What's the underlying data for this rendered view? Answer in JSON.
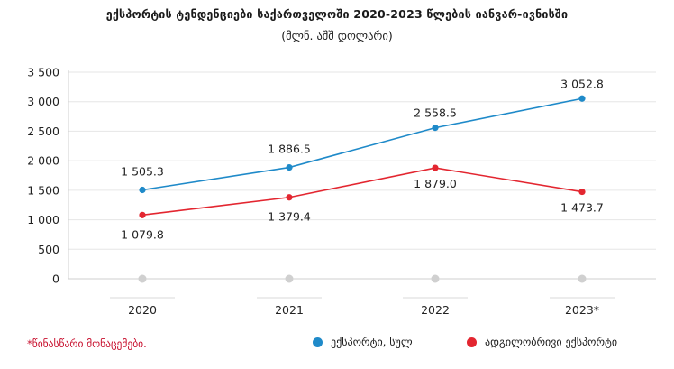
{
  "title": "ექსპორტის ტენდენციები საქართველოში 2020-2023 წლების იანვარ-ივნისში",
  "subtitle": "(მლნ. აშშ დოლარი)",
  "note": "*წინასწარი მონაცემები.",
  "colors": {
    "export": "#1f8ac9",
    "domestic": "#e32630",
    "zero_marker": "#d0d0d0",
    "grid": "#e6e6e6"
  },
  "chart_data": {
    "type": "line",
    "title": "ექსპორტის ტენდენციები საქართველოში 2020-2023 წლების იანვარ-ივნისში",
    "subtitle": "(მლნ. აშშ დოლარი)",
    "xlabel": "",
    "ylabel": "",
    "categories": [
      "2020",
      "2021",
      "2022",
      "2023*"
    ],
    "ylim": [
      0,
      3500
    ],
    "yticks": [
      0,
      500,
      1000,
      1500,
      2000,
      2500,
      3000,
      3500
    ],
    "ytick_labels": [
      "0",
      "500",
      "1 000",
      "1 500",
      "2 000",
      "2 500",
      "3 000",
      "3 500"
    ],
    "grid": true,
    "legend_position": "bottom-right",
    "series": [
      {
        "name": "ექსპორტი, სულ",
        "color": "#1f8ac9",
        "values": [
          1505.3,
          1886.5,
          2558.5,
          3052.8
        ],
        "labels": [
          "1 505.3",
          "1 886.5",
          "2 558.5",
          "3 052.8"
        ]
      },
      {
        "name": "ადგილობრივი ექსპორტი",
        "color": "#e32630",
        "values": [
          1079.8,
          1379.4,
          1879.0,
          1473.7
        ],
        "labels": [
          "1 079.8",
          "1 379.4",
          "1 879.0",
          "1 473.7"
        ]
      }
    ]
  }
}
